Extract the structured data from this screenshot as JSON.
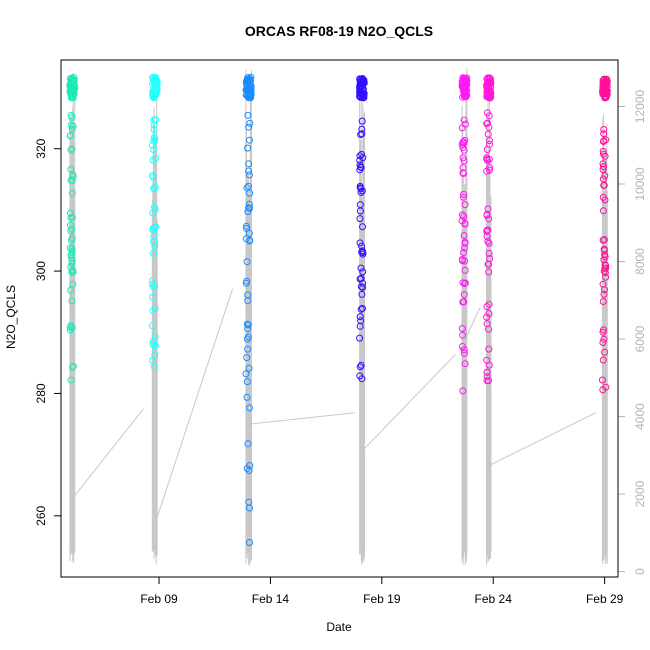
{
  "chart_data": {
    "type": "scatter",
    "title": "ORCAS RF08-19 N2O_QCLS",
    "xlabel": "Date",
    "ylabel": "N2O_QCLS",
    "ylim": [
      250,
      334.5
    ],
    "y2lim": [
      -140,
      13200
    ],
    "xlim_days": [
      1.6,
      26.6
    ],
    "x_ticks": [
      {
        "day": 6,
        "label": "Feb 09"
      },
      {
        "day": 11,
        "label": "Feb 14"
      },
      {
        "day": 16,
        "label": "Feb 19"
      },
      {
        "day": 21,
        "label": "Feb 24"
      },
      {
        "day": 26,
        "label": "Feb 29"
      }
    ],
    "y_ticks": [
      260,
      280,
      300,
      320
    ],
    "y2_ticks": [
      0,
      2000,
      4000,
      6000,
      8000,
      10000,
      12000
    ],
    "legend": "none",
    "flights": [
      {
        "day": 2.0,
        "width": 0.22,
        "color": "#1de9b6",
        "alt_max": 13000,
        "links": [
          {
            "day": 2.0,
            "alt": 1800
          },
          {
            "day": 5.3,
            "alt": 4200
          }
        ]
      },
      {
        "day": 5.7,
        "width": 0.22,
        "color": "#26ffff",
        "alt_max": 12800,
        "links": [
          {
            "day": 5.8,
            "alt": 1200
          },
          {
            "day": 9.3,
            "alt": 7300
          }
        ]
      },
      {
        "day": 9.9,
        "width": 0.25,
        "color": "#1a8cff",
        "alt_max": 13100,
        "links": [
          {
            "day": 10.0,
            "alt": 3800
          },
          {
            "day": 14.8,
            "alt": 4100
          }
        ]
      },
      {
        "day": 15.0,
        "width": 0.22,
        "color": "#3311ff",
        "alt_max": 12900,
        "links": [
          {
            "day": 15.1,
            "alt": 3100
          },
          {
            "day": 19.3,
            "alt": 5600
          }
        ]
      },
      {
        "day": 19.6,
        "width": 0.22,
        "color": "#ff19f5",
        "alt_max": 13000,
        "links": [
          {
            "day": 19.5,
            "alt": 5700
          },
          {
            "day": 20.4,
            "alt": 6800
          }
        ]
      },
      {
        "day": 20.7,
        "width": 0.2,
        "color": "#ff19d9",
        "alt_max": 12900,
        "links": [
          {
            "day": 20.7,
            "alt": 2700
          },
          {
            "day": 25.6,
            "alt": 4100
          }
        ]
      },
      {
        "day": 25.9,
        "width": 0.22,
        "color": "#ff0f99",
        "alt_max": 13000,
        "links": [
          {
            "day": 26.1,
            "alt": 1200
          }
        ]
      }
    ]
  }
}
